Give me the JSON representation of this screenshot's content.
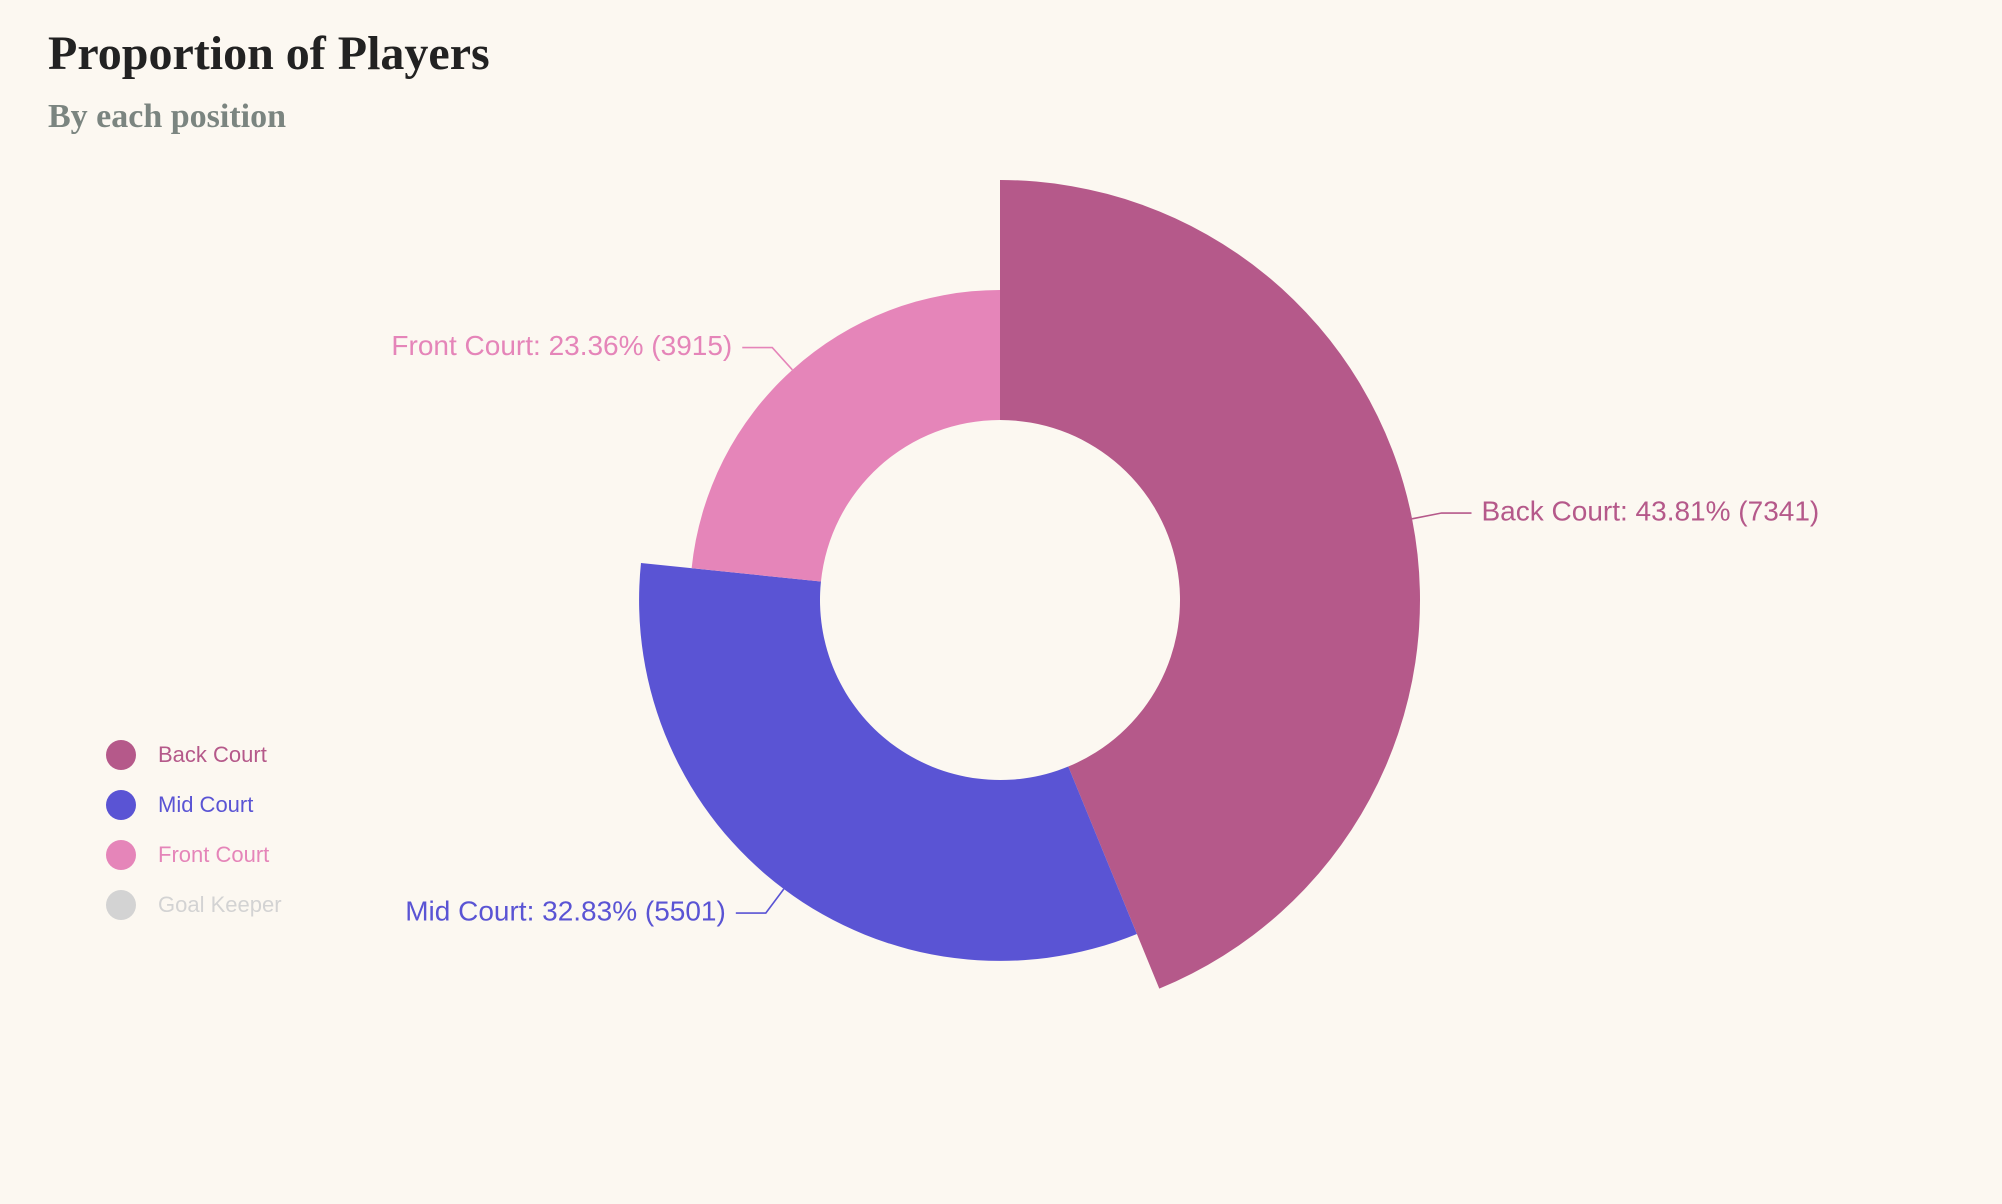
{
  "title": "Proportion of Players",
  "subtitle": "By each position",
  "chart_data": {
    "type": "pie",
    "variant": "rose-donut",
    "title": "Proportion of Players",
    "subtitle": "By each position",
    "series": [
      {
        "name": "Back Court",
        "value": 7341,
        "percent": 43.81,
        "label": "Back Court: 43.81% (7341)",
        "color": "#b5598a",
        "visible": true
      },
      {
        "name": "Mid Court",
        "value": 5501,
        "percent": 32.83,
        "label": "Mid Court: 32.83% (5501)",
        "color": "#5a54d4",
        "visible": true
      },
      {
        "name": "Front Court",
        "value": 3915,
        "percent": 23.36,
        "label": "Front Court: 23.36% (3915)",
        "color": "#e585b9",
        "visible": true
      },
      {
        "name": "Goal Keeper",
        "color": "#d3d3d3",
        "visible": false
      }
    ],
    "legend": {
      "position": "left"
    }
  }
}
